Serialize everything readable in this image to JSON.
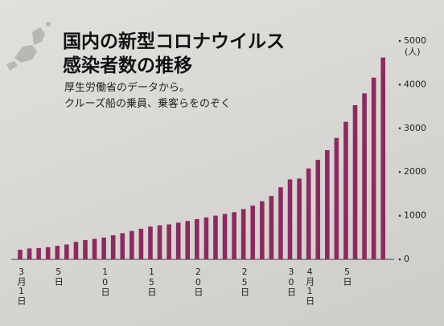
{
  "chart_data": {
    "type": "bar",
    "title": [
      "国内の新型コロナウイルス",
      "感染者数の推移"
    ],
    "subtitle": [
      "厚生労働省のデータから。",
      "クルーズ船の乗員、乗客らをのぞく"
    ],
    "y_unit": "(人)",
    "categories": [
      "3月1日",
      null,
      null,
      null,
      "5日",
      null,
      null,
      null,
      null,
      "10日",
      null,
      null,
      null,
      null,
      "15日",
      null,
      null,
      null,
      null,
      "20日",
      null,
      null,
      null,
      null,
      "25日",
      null,
      null,
      null,
      null,
      "30日",
      null,
      "4月1日",
      null,
      null,
      null,
      "5日",
      null,
      null,
      null,
      null
    ],
    "values": [
      220,
      250,
      260,
      280,
      310,
      340,
      400,
      440,
      470,
      500,
      550,
      600,
      650,
      700,
      750,
      780,
      800,
      840,
      880,
      920,
      960,
      1000,
      1040,
      1080,
      1150,
      1230,
      1330,
      1450,
      1650,
      1830,
      1850,
      2080,
      2280,
      2500,
      2780,
      3150,
      3530,
      3800,
      4160,
      4620
    ],
    "color": "#8c2a60",
    "ylim": [
      0,
      5000
    ],
    "yticks": [
      0,
      1000,
      2000,
      3000,
      4000,
      5000
    ]
  }
}
